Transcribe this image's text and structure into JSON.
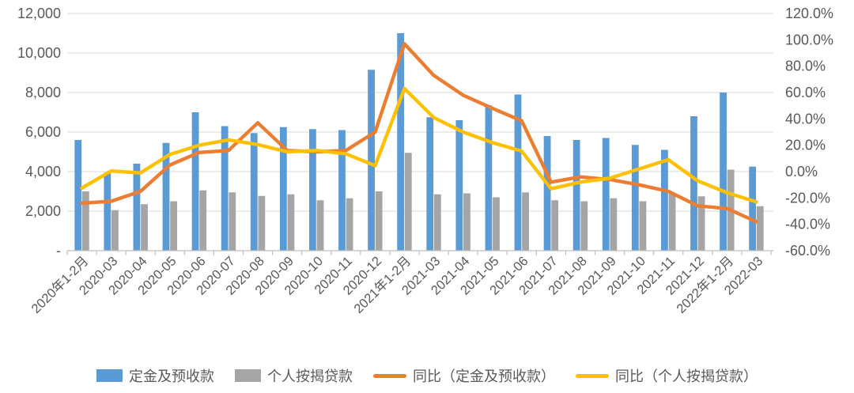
{
  "chart_data": {
    "type": "combo",
    "title": "",
    "categories": [
      "2020年1-2月",
      "2020-03",
      "2020-04",
      "2020-05",
      "2020-06",
      "2020-07",
      "2020-08",
      "2020-09",
      "2020-10",
      "2020-11",
      "2020-12",
      "2021年1-2月",
      "2021-03",
      "2021-04",
      "2021-05",
      "2021-06",
      "2021-07",
      "2021-08",
      "2021-09",
      "2021-10",
      "2021-11",
      "2021-12",
      "2022年1-2月",
      "2022-03"
    ],
    "series": [
      {
        "name": "定金及预收款",
        "type": "bar",
        "axis": "left",
        "color": "#5B9BD5",
        "values": [
          5600,
          3950,
          4400,
          5450,
          7000,
          6300,
          5950,
          6250,
          6150,
          6100,
          9150,
          11000,
          6750,
          6600,
          7350,
          7900,
          5800,
          5600,
          5700,
          5350,
          5100,
          6800,
          8000,
          4250
        ]
      },
      {
        "name": "个人按揭贷款",
        "type": "bar",
        "axis": "left",
        "color": "#A5A5A5",
        "values": [
          3000,
          2050,
          2350,
          2500,
          3050,
          2950,
          2770,
          2850,
          2550,
          2650,
          3000,
          4950,
          2850,
          2900,
          2700,
          2950,
          2550,
          2500,
          2650,
          2500,
          2900,
          2750,
          4100,
          2250
        ]
      },
      {
        "name": "同比（定金及预收款）",
        "type": "line",
        "axis": "right",
        "color": "#ED7D31",
        "values": [
          -24,
          -22.5,
          -15,
          5,
          14.5,
          16,
          37,
          16,
          15,
          16,
          30,
          97,
          73,
          58,
          48,
          38.5,
          -8,
          -4,
          -6,
          -10,
          -15,
          -26,
          -28,
          -38
        ]
      },
      {
        "name": "同比（个人按揭贷款）",
        "type": "line",
        "axis": "right",
        "color": "#FFC000",
        "values": [
          -12.5,
          0.5,
          -1,
          13,
          20,
          24,
          20.5,
          15,
          16,
          13.5,
          4.5,
          63,
          41,
          30,
          22,
          15.5,
          -13,
          -8,
          -5,
          2,
          9,
          -7,
          -16,
          -23
        ]
      }
    ],
    "left_axis": {
      "min": 0,
      "max": 12000,
      "tick_step": 2000,
      "tick_labels": [
        "12,000",
        "10,000",
        "8,000",
        "6,000",
        "4,000",
        "2,000",
        "-"
      ]
    },
    "right_axis": {
      "min": -60,
      "max": 120,
      "tick_step": 20,
      "tick_labels": [
        "120.0%",
        "100.0%",
        "80.0%",
        "60.0%",
        "40.0%",
        "20.0%",
        "0.0%",
        "-20.0%",
        "-40.0%",
        "-60.0%"
      ]
    },
    "grid": true,
    "legend_position": "bottom"
  },
  "colors": {
    "grid_line": "#D9D9D9",
    "axis_line": "#BFBFBF",
    "tick_label": "#595959",
    "legend_text": "#595959",
    "background": "#FFFFFF"
  }
}
